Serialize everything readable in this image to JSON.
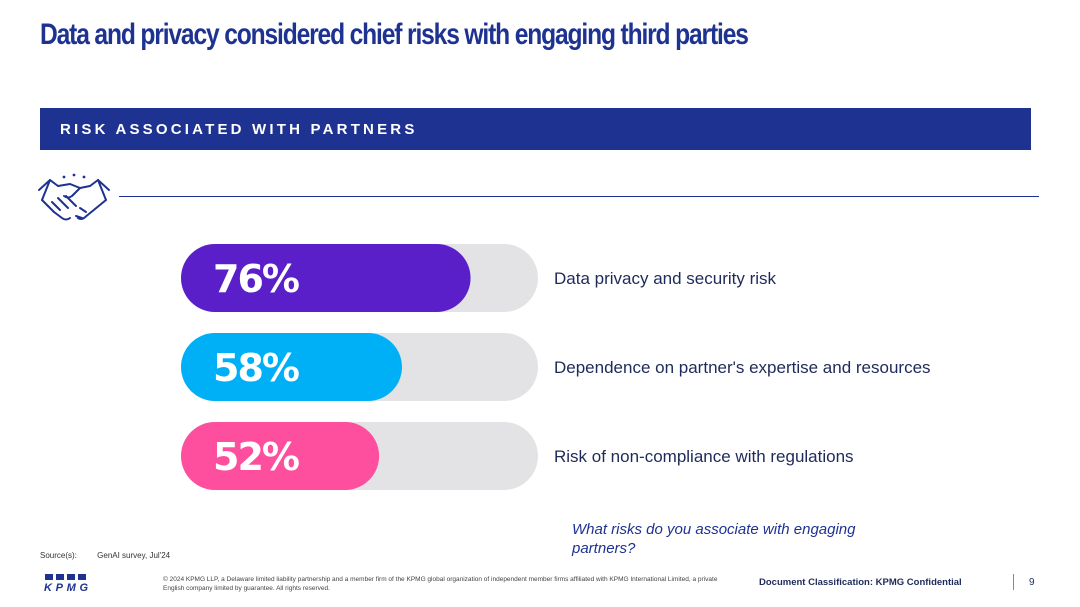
{
  "title": "Data and privacy considered chief risks with engaging third parties",
  "banner": "RISK ASSOCIATED WITH PARTNERS",
  "chart_data": {
    "type": "bar",
    "orientation": "horizontal",
    "categories": [
      "Data privacy and security risk",
      "Dependence on partner's expertise and resources",
      "Risk of non-compliance with regulations"
    ],
    "values": [
      76,
      58,
      52
    ],
    "labels": [
      "76%",
      "58%",
      "52%"
    ],
    "colors": [
      "#5a1fc8",
      "#00b0f6",
      "#fd4f9e"
    ],
    "track_color": "#e3e3e5",
    "xlim": [
      0,
      100
    ],
    "title": "",
    "xlabel": "",
    "ylabel": ""
  },
  "question": "What risks do you associate with engaging partners?",
  "source": {
    "label": "Source(s):",
    "text": "GenAI survey, Jul'24"
  },
  "footer": {
    "logo_text": "KPMG",
    "copyright": "© 2024 KPMG LLP, a Delaware limited liability partnership and a member firm of the KPMG global organization of independent member firms affiliated with KPMG International Limited, a private English company limited by guarantee. All rights reserved.",
    "classification": "Document Classification: KPMG Confidential",
    "page_number": "9"
  },
  "icons": {
    "handshake": "handshake-icon"
  },
  "accent_color": "#1e3291"
}
